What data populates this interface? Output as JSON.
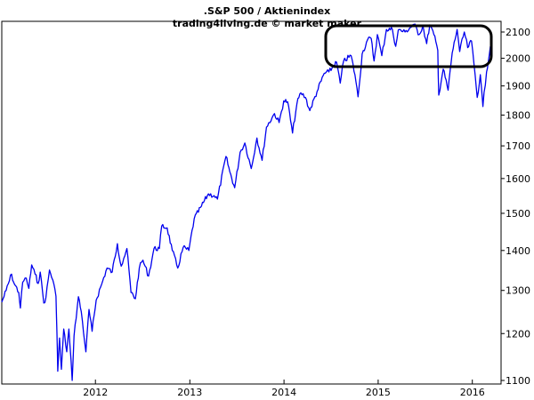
{
  "chart_data": {
    "type": "line",
    "title": ".S&P 500 / Aktienindex",
    "subtitle": "trading4living.de © market maker",
    "xlabel": "",
    "ylabel": "",
    "scale": "log",
    "grid": false,
    "ylim": [
      1090,
      2200
    ],
    "xlim": [
      "2011-01-03",
      "2016-03-11"
    ],
    "y_ticks": [
      1100,
      1200,
      1300,
      1400,
      1500,
      1600,
      1700,
      1800,
      1900,
      2000,
      2100
    ],
    "x_ticks": [
      "2012",
      "2013",
      "2014",
      "2015",
      "2016"
    ],
    "annotation": "rounded-rectangle highlighting the 2015–2016 range",
    "colors": {
      "line": "#0000ee",
      "axes": "#000000",
      "annotation": "#000000",
      "background": "#ffffff"
    },
    "series": [
      {
        "x": [
          "2011-01-03",
          "2011-01-20",
          "2011-02-10",
          "2011-02-18",
          "2011-03-10",
          "2011-03-16",
          "2011-03-25",
          "2011-04-08",
          "2011-04-18",
          "2011-04-29",
          "2011-05-12",
          "2011-05-24",
          "2011-06-01",
          "2011-06-15",
          "2011-06-23",
          "2011-07-07",
          "2011-07-20",
          "2011-08-01",
          "2011-08-05",
          "2011-08-08",
          "2011-08-15",
          "2011-08-22",
          "2011-08-31",
          "2011-09-12",
          "2011-09-20",
          "2011-10-03",
          "2011-10-10",
          "2011-10-27",
          "2011-11-07",
          "2011-11-25",
          "2011-12-07",
          "2011-12-19",
          "2012-01-04",
          "2012-01-25",
          "2012-02-15",
          "2012-03-06",
          "2012-03-26",
          "2012-04-10",
          "2012-04-20",
          "2012-05-02",
          "2012-05-18",
          "2012-06-04",
          "2012-06-19",
          "2012-07-03",
          "2012-07-25",
          "2012-08-15",
          "2012-09-05",
          "2012-09-14",
          "2012-10-05",
          "2012-10-25",
          "2012-11-15",
          "2012-12-06",
          "2012-12-28",
          "2013-01-18",
          "2013-02-15",
          "2013-03-14",
          "2013-04-05",
          "2013-04-18",
          "2013-05-21",
          "2013-06-05",
          "2013-06-24",
          "2013-07-15",
          "2013-08-02",
          "2013-08-27",
          "2013-09-18",
          "2013-10-08",
          "2013-10-25",
          "2013-11-25",
          "2013-12-13",
          "2013-12-31",
          "2014-01-15",
          "2014-02-03",
          "2014-02-20",
          "2014-03-07",
          "2014-03-25",
          "2014-04-11",
          "2014-05-09",
          "2014-06-06",
          "2014-06-24",
          "2014-07-24",
          "2014-08-07",
          "2014-08-20",
          "2014-09-18",
          "2014-10-03",
          "2014-10-15",
          "2014-10-31",
          "2014-11-21",
          "2014-12-05",
          "2014-12-16",
          "2014-12-29",
          "2015-01-15",
          "2015-02-02",
          "2015-02-25",
          "2015-03-10",
          "2015-03-20",
          "2015-04-15",
          "2015-05-20",
          "2015-06-09",
          "2015-06-23",
          "2015-07-08",
          "2015-07-20",
          "2015-08-05",
          "2015-08-20",
          "2015-08-24",
          "2015-09-10",
          "2015-09-29",
          "2015-10-15",
          "2015-11-03",
          "2015-11-13",
          "2015-12-01",
          "2015-12-14",
          "2015-12-29",
          "2016-01-12",
          "2016-01-20",
          "2016-02-01",
          "2016-02-11",
          "2016-02-25",
          "2016-03-11"
        ],
        "values": [
          1272,
          1300,
          1340,
          1320,
          1295,
          1258,
          1320,
          1330,
          1305,
          1363,
          1340,
          1317,
          1345,
          1270,
          1283,
          1350,
          1325,
          1286,
          1200,
          1119,
          1190,
          1123,
          1210,
          1160,
          1210,
          1100,
          1195,
          1285,
          1250,
          1160,
          1255,
          1205,
          1277,
          1315,
          1355,
          1345,
          1418,
          1360,
          1380,
          1405,
          1295,
          1280,
          1355,
          1375,
          1335,
          1405,
          1405,
          1465,
          1460,
          1400,
          1355,
          1408,
          1400,
          1485,
          1520,
          1555,
          1550,
          1540,
          1667,
          1620,
          1573,
          1680,
          1709,
          1630,
          1725,
          1655,
          1760,
          1805,
          1775,
          1848,
          1845,
          1741,
          1838,
          1876,
          1860,
          1815,
          1880,
          1945,
          1950,
          1985,
          1910,
          1990,
          2010,
          1940,
          1862,
          2016,
          2070,
          2075,
          1990,
          2090,
          2010,
          2110,
          2110,
          2045,
          2108,
          2100,
          2130,
          2090,
          2125,
          2055,
          2128,
          2090,
          2030,
          1868,
          1960,
          1885,
          2020,
          2110,
          2025,
          2100,
          2040,
          2065,
          1938,
          1860,
          1940,
          1829,
          1950,
          2045
        ]
      }
    ]
  }
}
